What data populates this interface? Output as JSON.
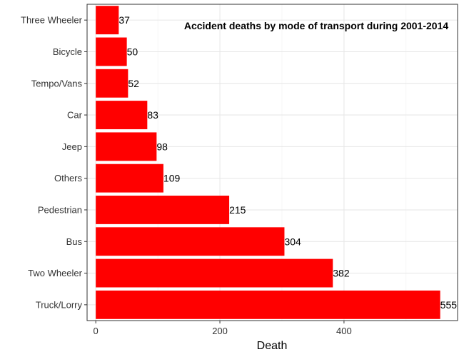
{
  "chart_data": {
    "type": "bar",
    "orientation": "horizontal",
    "title": "Accident deaths by mode of transport during 2001-2014",
    "xlabel": "Death",
    "ylabel": "",
    "categories": [
      "Three Wheeler",
      "Bicycle",
      "Tempo/Vans",
      "Car",
      "Jeep",
      "Others",
      "Pedestrian",
      "Bus",
      "Two Wheeler",
      "Truck/Lorry"
    ],
    "values": [
      37,
      50,
      52,
      83,
      98,
      109,
      215,
      304,
      382,
      555
    ],
    "data_labels": [
      "37",
      "50",
      "52",
      "83",
      "98",
      "109",
      "215",
      "304",
      "382",
      "555"
    ],
    "xlim": [
      -14,
      583
    ],
    "xticks": [
      0,
      200,
      400
    ],
    "xtick_labels": [
      "0",
      "200",
      "400"
    ],
    "bar_color": "#ff0000",
    "grid": true,
    "legend": "none"
  }
}
